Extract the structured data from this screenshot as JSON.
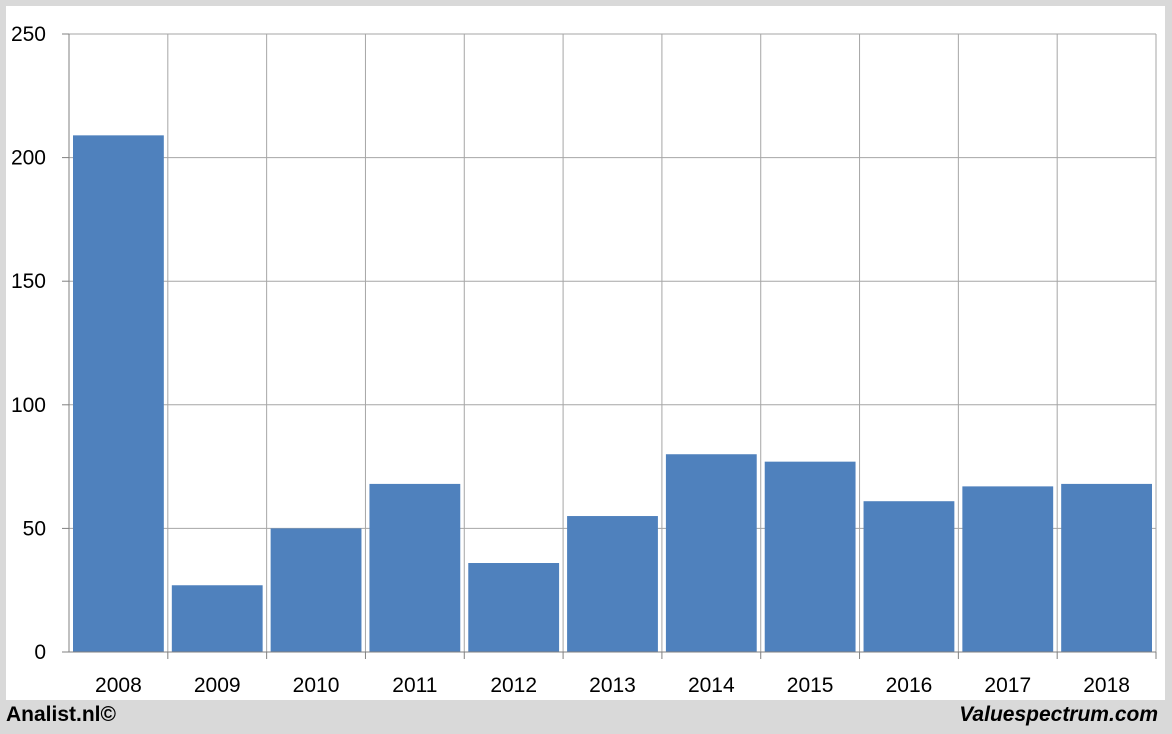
{
  "chart_data": {
    "type": "bar",
    "categories": [
      "2008",
      "2009",
      "2010",
      "2011",
      "2012",
      "2013",
      "2014",
      "2015",
      "2016",
      "2017",
      "2018"
    ],
    "values": [
      209,
      27,
      50,
      68,
      36,
      55,
      80,
      77,
      61,
      67,
      68
    ],
    "ylim": [
      0,
      250
    ],
    "yticks": [
      0,
      50,
      100,
      150,
      200,
      250
    ],
    "grid": true,
    "bar_color": "#4f81bd"
  },
  "footer": {
    "left": "Analist.nl©",
    "right": "Valuespectrum.com"
  }
}
